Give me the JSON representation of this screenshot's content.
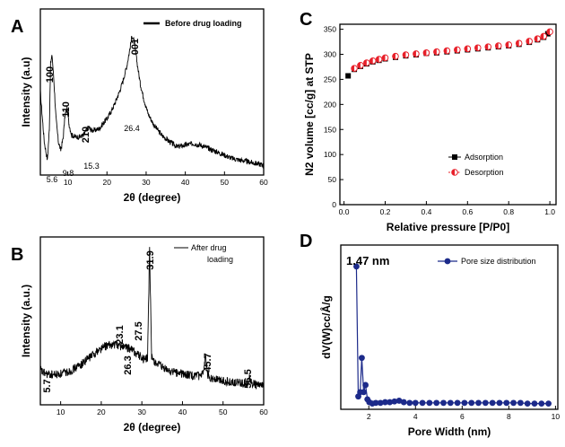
{
  "panels": [
    "A",
    "B",
    "C",
    "D"
  ],
  "chart_data": [
    {
      "id": "A",
      "type": "line",
      "xlabel": "2θ (degree)",
      "ylabel": "Intensity (a.u)",
      "xlim": [
        3,
        60
      ],
      "ylim": [
        0,
        100
      ],
      "xticks": [
        10,
        20,
        30,
        40,
        50,
        60
      ],
      "series": [
        {
          "name": "Before drug loading",
          "color": "#000000",
          "x": [
            3,
            4,
            4.8,
            5.3,
            5.6,
            6,
            6.5,
            7,
            7.6,
            8.2,
            8.8,
            9.3,
            9.8,
            10.3,
            11,
            12,
            13,
            14,
            14.8,
            15.3,
            16,
            17,
            18,
            19,
            20,
            21,
            22,
            23,
            24,
            25,
            25.7,
            26.4,
            27,
            27.6,
            28.5,
            29.5,
            30.5,
            32,
            34,
            36,
            38,
            40,
            42,
            44,
            46,
            48,
            50,
            52,
            54,
            56,
            58,
            60
          ],
          "y": [
            50,
            20,
            9,
            28,
            67,
            72,
            55,
            34,
            20,
            15,
            22,
            36,
            40,
            31,
            24,
            23,
            23,
            24,
            27,
            29,
            27,
            27,
            28,
            31,
            34,
            38,
            43,
            49,
            56,
            65,
            74,
            84,
            80,
            69,
            55,
            45,
            37,
            30,
            24,
            20,
            17,
            18,
            19,
            18,
            16,
            14,
            12,
            10,
            9,
            8,
            7,
            6
          ]
        }
      ],
      "peak_labels": [
        {
          "x": 5.6,
          "text": "100"
        },
        {
          "x": 9.8,
          "text": "110"
        },
        {
          "x": 15.3,
          "text": "210"
        },
        {
          "x": 26.4,
          "text": "001"
        }
      ],
      "annotations": [
        {
          "x": 5.6,
          "text": "5.6"
        },
        {
          "x": 9.8,
          "text": "9.8"
        },
        {
          "x": 15.3,
          "text": "15.3"
        },
        {
          "x": 26.4,
          "text": "26.4"
        }
      ]
    },
    {
      "id": "B",
      "type": "line",
      "xlabel": "2θ (degree)",
      "ylabel": "Intensity (a.u.)",
      "xlim": [
        5,
        60
      ],
      "ylim": [
        0,
        100
      ],
      "xticks": [
        10,
        20,
        30,
        40,
        50,
        60
      ],
      "series": [
        {
          "name": "After drug loading",
          "color": "#000000",
          "x": [
            5,
            5.7,
            7,
            9,
            11,
            13,
            15,
            17,
            19,
            21,
            23.1,
            25,
            26.3,
            27.5,
            29,
            30.5,
            31.4,
            31.9,
            32.4,
            33.5,
            35,
            37,
            39,
            41,
            43,
            44.5,
            45.2,
            45.7,
            46.2,
            47,
            49,
            51,
            53,
            55,
            56,
            56.5,
            57,
            58,
            60
          ],
          "y": [
            21,
            19,
            18,
            18,
            19,
            21,
            24,
            28,
            32,
            35,
            36,
            35,
            34,
            33,
            30,
            27,
            28,
            92,
            28,
            25,
            22,
            20,
            19,
            18,
            17,
            17,
            19,
            28,
            18,
            16,
            15,
            14,
            13,
            13,
            13,
            16,
            13,
            12,
            11
          ]
        }
      ],
      "peak_labels": [
        {
          "x": 31.9,
          "text": "31.9"
        },
        {
          "x": 45.7,
          "text": "45.7"
        },
        {
          "x": 56.5,
          "text": "56.5"
        },
        {
          "x": 23.1,
          "text": "23.1"
        },
        {
          "x": 27.5,
          "text": "27.5"
        }
      ],
      "annotations": [
        {
          "x": 5.7,
          "text": "5.7"
        },
        {
          "x": 26.3,
          "text": "26.3"
        }
      ]
    },
    {
      "id": "C",
      "type": "scatter",
      "xlabel": "Relative pressure [P/P0]",
      "ylabel": "N2 volume [cc/g] at STP",
      "xlim": [
        -0.02,
        1.03
      ],
      "ylim": [
        0,
        360
      ],
      "xticks": [
        0.0,
        0.2,
        0.4,
        0.6,
        0.8,
        1.0
      ],
      "yticks": [
        0,
        50,
        100,
        150,
        200,
        250,
        300,
        350
      ],
      "series": [
        {
          "name": "Adsorption",
          "color": "#000000",
          "marker": "square",
          "x": [
            0.02,
            0.05,
            0.08,
            0.11,
            0.14,
            0.17,
            0.2,
            0.25,
            0.3,
            0.35,
            0.4,
            0.45,
            0.5,
            0.55,
            0.6,
            0.65,
            0.7,
            0.75,
            0.8,
            0.85,
            0.9,
            0.94,
            0.97,
            0.99
          ],
          "y": [
            257,
            270,
            276,
            281,
            285,
            288,
            291,
            294,
            297,
            299,
            302,
            303,
            305,
            307,
            309,
            311,
            313,
            315,
            317,
            320,
            324,
            329,
            334,
            341
          ]
        },
        {
          "name": "Desorption",
          "color": "#e8202a",
          "marker": "half-circle",
          "x": [
            0.05,
            0.08,
            0.11,
            0.14,
            0.17,
            0.2,
            0.25,
            0.3,
            0.35,
            0.4,
            0.45,
            0.5,
            0.55,
            0.6,
            0.65,
            0.7,
            0.75,
            0.8,
            0.85,
            0.9,
            0.94,
            0.97,
            1.0
          ],
          "y": [
            272,
            278,
            283,
            287,
            290,
            293,
            296,
            299,
            301,
            303,
            305,
            307,
            309,
            311,
            313,
            315,
            317,
            319,
            322,
            326,
            331,
            336,
            345
          ]
        }
      ]
    },
    {
      "id": "D",
      "type": "line",
      "xlabel": "Pore Width (nm)",
      "ylabel": "dV(W)cc/Å/g",
      "xlim": [
        0.8,
        10.1
      ],
      "ylim": [
        0,
        1.15
      ],
      "xticks": [
        2,
        4,
        6,
        8,
        10
      ],
      "series": [
        {
          "name": "Pore size distribution",
          "color": "#1c2a8a",
          "marker": "circle",
          "x": [
            1.47,
            1.55,
            1.63,
            1.7,
            1.78,
            1.86,
            1.94,
            2.02,
            2.15,
            2.3,
            2.5,
            2.7,
            2.9,
            3.1,
            3.3,
            3.5,
            3.75,
            4.0,
            4.3,
            4.6,
            4.9,
            5.2,
            5.5,
            5.8,
            6.1,
            6.4,
            6.7,
            7.0,
            7.3,
            7.6,
            7.9,
            8.2,
            8.5,
            8.8,
            9.1,
            9.4,
            9.7
          ],
          "y": [
            1.0,
            0.09,
            0.12,
            0.36,
            0.12,
            0.17,
            0.07,
            0.05,
            0.04,
            0.045,
            0.045,
            0.05,
            0.05,
            0.055,
            0.06,
            0.05,
            0.045,
            0.045,
            0.045,
            0.045,
            0.045,
            0.045,
            0.045,
            0.045,
            0.045,
            0.045,
            0.045,
            0.045,
            0.045,
            0.045,
            0.045,
            0.045,
            0.045,
            0.04,
            0.04,
            0.04,
            0.04
          ]
        }
      ],
      "peak_labels": [
        {
          "x": 1.47,
          "text": "1.47 nm"
        }
      ]
    }
  ]
}
